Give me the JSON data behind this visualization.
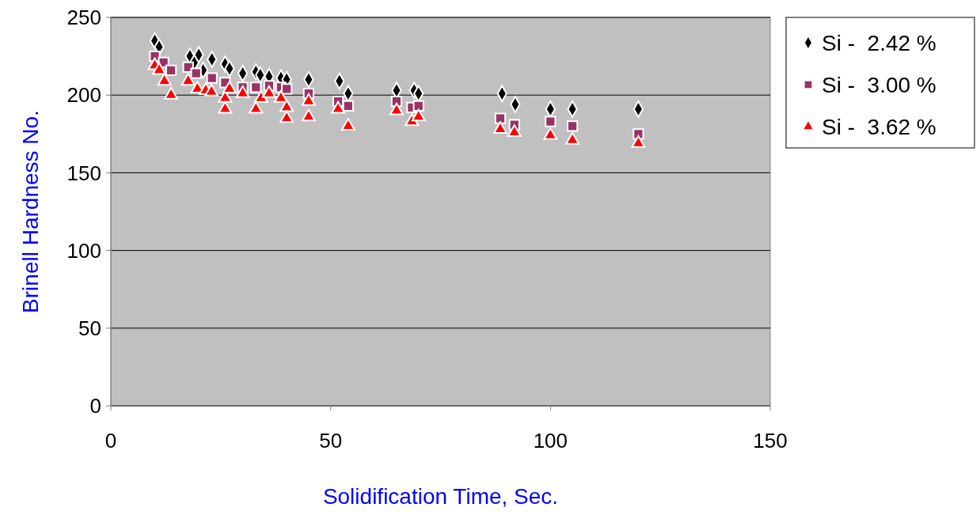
{
  "chart_data": {
    "type": "scatter",
    "xlabel": "Solidification Time, Sec.",
    "ylabel": "Brinell Hardness  No.",
    "xlim": [
      0,
      150
    ],
    "xticks": [
      0,
      50,
      100,
      150
    ],
    "ylim": [
      0,
      250
    ],
    "yticks": [
      0,
      50,
      100,
      150,
      200,
      250
    ],
    "grid": "y",
    "legend": "top right",
    "series": [
      {
        "name": "Si -  2.42 %",
        "color": "#000000",
        "marker": "diamond",
        "x": [
          10,
          11,
          18,
          19,
          20,
          21,
          23,
          26,
          27,
          30,
          33,
          34,
          36,
          38.7,
          40,
          45,
          52,
          54,
          65,
          69,
          70,
          89,
          92,
          100,
          105,
          120
        ],
        "values": [
          235,
          231,
          225,
          221,
          226,
          216,
          223,
          220,
          217,
          214,
          215,
          213,
          212,
          211,
          210,
          210,
          209,
          201,
          203,
          203,
          201,
          201,
          194,
          191,
          191,
          191
        ]
      },
      {
        "name": "Si -  3.00 %",
        "color": "#993366",
        "marker": "square",
        "x": [
          10,
          12,
          13.7,
          17.6,
          19.4,
          23,
          26,
          30,
          33,
          36,
          38.7,
          40,
          45,
          51.7,
          54,
          65,
          68.5,
          70,
          88.6,
          91.8,
          100,
          105,
          120
        ],
        "values": [
          225,
          221,
          216,
          218,
          214,
          211,
          208,
          205,
          205,
          206,
          205,
          204,
          201,
          196,
          193,
          196,
          192,
          193,
          185,
          181,
          183,
          180,
          175
        ]
      },
      {
        "name": "Si -  3.62 %",
        "color": "#ff0000",
        "marker": "triangle",
        "x": [
          10,
          11,
          12.2,
          13.7,
          17.6,
          19.7,
          21.6,
          22.9,
          26,
          26,
          27,
          30,
          33,
          34.2,
          36,
          38.7,
          40,
          40,
          45,
          45,
          51.7,
          54,
          65,
          68.5,
          70,
          88.6,
          91.8,
          100,
          105,
          120
        ],
        "values": [
          219,
          216,
          209,
          200,
          209,
          204,
          203,
          202,
          198,
          191,
          204,
          201,
          191,
          198,
          201,
          198,
          192,
          185,
          196,
          186,
          191,
          180,
          190,
          183,
          186,
          178,
          176,
          174,
          171,
          169
        ]
      }
    ]
  }
}
